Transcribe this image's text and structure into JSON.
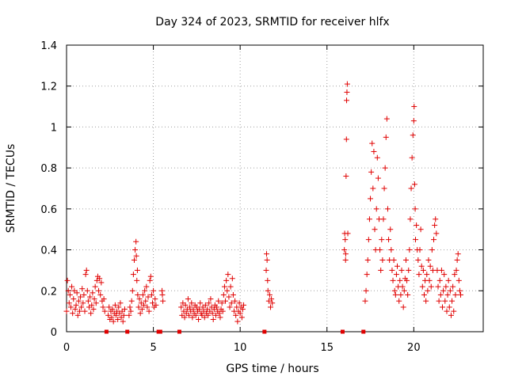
{
  "chart_data": {
    "type": "scatter",
    "title": "Day 324 of 2023, SRMTID for receiver hlfx",
    "xlabel": "GPS time / hours",
    "ylabel": "SRMTID / TECUs",
    "xlim": [
      0,
      24
    ],
    "ylim": [
      0,
      1.4
    ],
    "xticks": [
      0,
      5,
      10,
      15,
      20
    ],
    "xtick_labels": [
      "0",
      "5",
      "10",
      "15",
      "20"
    ],
    "yticks": [
      0,
      0.2,
      0.4,
      0.6,
      0.8,
      1.0,
      1.2,
      1.4
    ],
    "ytick_labels": [
      "0",
      "0.2",
      "0.4",
      "0.6",
      "0.8",
      "1",
      "1.2",
      "1.4"
    ],
    "grid": true,
    "marker": "plus",
    "series_color": "#e00000",
    "series": [
      {
        "name": "SRMTID",
        "points": [
          [
            0.0,
            0.1
          ],
          [
            0.05,
            0.25
          ],
          [
            0.1,
            0.2
          ],
          [
            0.15,
            0.14
          ],
          [
            0.2,
            0.18
          ],
          [
            0.25,
            0.12
          ],
          [
            0.3,
            0.22
          ],
          [
            0.35,
            0.09
          ],
          [
            0.4,
            0.16
          ],
          [
            0.45,
            0.2
          ],
          [
            0.5,
            0.11
          ],
          [
            0.55,
            0.13
          ],
          [
            0.6,
            0.19
          ],
          [
            0.65,
            0.08
          ],
          [
            0.7,
            0.15
          ],
          [
            0.75,
            0.1
          ],
          [
            0.8,
            0.17
          ],
          [
            0.85,
            0.12
          ],
          [
            0.9,
            0.21
          ],
          [
            0.95,
            0.14
          ],
          [
            1.0,
            0.18
          ],
          [
            1.05,
            0.1
          ],
          [
            1.1,
            0.28
          ],
          [
            1.15,
            0.3
          ],
          [
            1.2,
            0.2
          ],
          [
            1.25,
            0.15
          ],
          [
            1.3,
            0.12
          ],
          [
            1.35,
            0.17
          ],
          [
            1.4,
            0.09
          ],
          [
            1.45,
            0.13
          ],
          [
            1.5,
            0.19
          ],
          [
            1.55,
            0.11
          ],
          [
            1.6,
            0.16
          ],
          [
            1.65,
            0.22
          ],
          [
            1.7,
            0.14
          ],
          [
            1.75,
            0.25
          ],
          [
            1.8,
            0.27
          ],
          [
            1.85,
            0.2
          ],
          [
            1.9,
            0.26
          ],
          [
            1.95,
            0.18
          ],
          [
            2.0,
            0.24
          ],
          [
            2.05,
            0.15
          ],
          [
            2.1,
            0.12
          ],
          [
            2.15,
            0.16
          ],
          [
            2.2,
            0.1
          ],
          [
            2.4,
            0.08
          ],
          [
            2.45,
            0.12
          ],
          [
            2.5,
            0.06
          ],
          [
            2.55,
            0.1
          ],
          [
            2.6,
            0.07
          ],
          [
            2.65,
            0.11
          ],
          [
            2.7,
            0.05
          ],
          [
            2.75,
            0.09
          ],
          [
            2.8,
            0.13
          ],
          [
            2.85,
            0.08
          ],
          [
            2.9,
            0.1
          ],
          [
            2.95,
            0.06
          ],
          [
            3.0,
            0.12
          ],
          [
            3.05,
            0.09
          ],
          [
            3.1,
            0.14
          ],
          [
            3.15,
            0.07
          ],
          [
            3.2,
            0.1
          ],
          [
            3.25,
            0.05
          ],
          [
            3.3,
            0.08
          ],
          [
            3.35,
            0.11
          ],
          [
            3.6,
            0.08
          ],
          [
            3.65,
            0.12
          ],
          [
            3.7,
            0.1
          ],
          [
            3.75,
            0.15
          ],
          [
            3.8,
            0.2
          ],
          [
            3.85,
            0.28
          ],
          [
            3.9,
            0.35
          ],
          [
            3.95,
            0.4
          ],
          [
            4.0,
            0.44
          ],
          [
            4.02,
            0.37
          ],
          [
            4.05,
            0.25
          ],
          [
            4.08,
            0.3
          ],
          [
            4.1,
            0.18
          ],
          [
            4.15,
            0.12
          ],
          [
            4.2,
            0.16
          ],
          [
            4.25,
            0.09
          ],
          [
            4.3,
            0.14
          ],
          [
            4.35,
            0.11
          ],
          [
            4.4,
            0.18
          ],
          [
            4.45,
            0.13
          ],
          [
            4.5,
            0.2
          ],
          [
            4.55,
            0.15
          ],
          [
            4.6,
            0.22
          ],
          [
            4.65,
            0.12
          ],
          [
            4.7,
            0.17
          ],
          [
            4.75,
            0.1
          ],
          [
            4.8,
            0.25
          ],
          [
            4.85,
            0.27
          ],
          [
            4.9,
            0.18
          ],
          [
            4.95,
            0.14
          ],
          [
            5.0,
            0.2
          ],
          [
            5.05,
            0.12
          ],
          [
            5.1,
            0.16
          ],
          [
            5.15,
            0.13
          ],
          [
            5.5,
            0.2
          ],
          [
            5.52,
            0.18
          ],
          [
            5.55,
            0.15
          ],
          [
            6.6,
            0.12
          ],
          [
            6.65,
            0.08
          ],
          [
            6.7,
            0.14
          ],
          [
            6.75,
            0.1
          ],
          [
            6.8,
            0.07
          ],
          [
            6.85,
            0.13
          ],
          [
            6.9,
            0.09
          ],
          [
            6.95,
            0.11
          ],
          [
            7.0,
            0.16
          ],
          [
            7.05,
            0.08
          ],
          [
            7.1,
            0.12
          ],
          [
            7.15,
            0.1
          ],
          [
            7.2,
            0.14
          ],
          [
            7.25,
            0.07
          ],
          [
            7.3,
            0.11
          ],
          [
            7.35,
            0.09
          ],
          [
            7.4,
            0.13
          ],
          [
            7.45,
            0.08
          ],
          [
            7.5,
            0.12
          ],
          [
            7.55,
            0.1
          ],
          [
            7.6,
            0.06
          ],
          [
            7.65,
            0.11
          ],
          [
            7.7,
            0.14
          ],
          [
            7.75,
            0.09
          ],
          [
            7.8,
            0.08
          ],
          [
            7.85,
            0.12
          ],
          [
            7.9,
            0.1
          ],
          [
            7.95,
            0.07
          ],
          [
            8.0,
            0.13
          ],
          [
            8.05,
            0.09
          ],
          [
            8.1,
            0.11
          ],
          [
            8.15,
            0.08
          ],
          [
            8.2,
            0.14
          ],
          [
            8.25,
            0.1
          ],
          [
            8.3,
            0.16
          ],
          [
            8.35,
            0.12
          ],
          [
            8.4,
            0.09
          ],
          [
            8.45,
            0.06
          ],
          [
            8.5,
            0.11
          ],
          [
            8.55,
            0.13
          ],
          [
            8.6,
            0.08
          ],
          [
            8.65,
            0.12
          ],
          [
            8.7,
            0.1
          ],
          [
            8.75,
            0.15
          ],
          [
            8.8,
            0.09
          ],
          [
            8.85,
            0.07
          ],
          [
            8.9,
            0.11
          ],
          [
            8.95,
            0.14
          ],
          [
            9.0,
            0.1
          ],
          [
            9.05,
            0.18
          ],
          [
            9.1,
            0.22
          ],
          [
            9.15,
            0.15
          ],
          [
            9.2,
            0.25
          ],
          [
            9.25,
            0.2
          ],
          [
            9.3,
            0.28
          ],
          [
            9.35,
            0.17
          ],
          [
            9.4,
            0.12
          ],
          [
            9.45,
            0.22
          ],
          [
            9.5,
            0.14
          ],
          [
            9.55,
            0.26
          ],
          [
            9.6,
            0.18
          ],
          [
            9.65,
            0.1
          ],
          [
            9.7,
            0.15
          ],
          [
            9.75,
            0.08
          ],
          [
            9.8,
            0.12
          ],
          [
            9.85,
            0.05
          ],
          [
            9.9,
            0.1
          ],
          [
            9.95,
            0.14
          ],
          [
            10.0,
            0.09
          ],
          [
            10.05,
            0.12
          ],
          [
            10.1,
            0.07
          ],
          [
            10.15,
            0.11
          ],
          [
            10.2,
            0.13
          ],
          [
            11.5,
            0.3
          ],
          [
            11.52,
            0.38
          ],
          [
            11.55,
            0.35
          ],
          [
            11.58,
            0.25
          ],
          [
            11.6,
            0.2
          ],
          [
            11.65,
            0.15
          ],
          [
            11.7,
            0.18
          ],
          [
            11.75,
            0.12
          ],
          [
            11.8,
            0.16
          ],
          [
            11.85,
            0.14
          ],
          [
            16.0,
            0.4
          ],
          [
            16.02,
            0.48
          ],
          [
            16.05,
            0.45
          ],
          [
            16.07,
            0.35
          ],
          [
            16.08,
            0.38
          ],
          [
            16.1,
            0.76
          ],
          [
            16.12,
            0.94
          ],
          [
            16.13,
            1.13
          ],
          [
            16.15,
            1.17
          ],
          [
            16.17,
            1.21
          ],
          [
            16.2,
            0.48
          ],
          [
            17.2,
            0.15
          ],
          [
            17.25,
            0.2
          ],
          [
            17.3,
            0.28
          ],
          [
            17.35,
            0.35
          ],
          [
            17.4,
            0.45
          ],
          [
            17.45,
            0.55
          ],
          [
            17.5,
            0.65
          ],
          [
            17.55,
            0.78
          ],
          [
            17.6,
            0.92
          ],
          [
            17.65,
            0.7
          ],
          [
            17.7,
            0.88
          ],
          [
            17.75,
            0.5
          ],
          [
            17.8,
            0.4
          ],
          [
            17.85,
            0.6
          ],
          [
            17.9,
            0.85
          ],
          [
            17.95,
            0.75
          ],
          [
            18.0,
            0.55
          ],
          [
            18.05,
            0.4
          ],
          [
            18.1,
            0.3
          ],
          [
            18.15,
            0.45
          ],
          [
            18.2,
            0.35
          ],
          [
            18.25,
            0.55
          ],
          [
            18.3,
            0.7
          ],
          [
            18.35,
            0.8
          ],
          [
            18.4,
            0.95
          ],
          [
            18.45,
            1.04
          ],
          [
            18.5,
            0.6
          ],
          [
            18.55,
            0.45
          ],
          [
            18.6,
            0.35
          ],
          [
            18.65,
            0.5
          ],
          [
            18.7,
            0.4
          ],
          [
            18.75,
            0.3
          ],
          [
            18.8,
            0.25
          ],
          [
            18.85,
            0.35
          ],
          [
            18.9,
            0.2
          ],
          [
            18.95,
            0.18
          ],
          [
            19.0,
            0.28
          ],
          [
            19.05,
            0.32
          ],
          [
            19.1,
            0.22
          ],
          [
            19.15,
            0.15
          ],
          [
            19.2,
            0.25
          ],
          [
            19.25,
            0.18
          ],
          [
            19.3,
            0.3
          ],
          [
            19.35,
            0.22
          ],
          [
            19.4,
            0.12
          ],
          [
            19.45,
            0.2
          ],
          [
            19.5,
            0.26
          ],
          [
            19.55,
            0.35
          ],
          [
            19.6,
            0.25
          ],
          [
            19.65,
            0.18
          ],
          [
            19.7,
            0.3
          ],
          [
            19.75,
            0.4
          ],
          [
            19.8,
            0.55
          ],
          [
            19.85,
            0.7
          ],
          [
            19.9,
            0.85
          ],
          [
            19.95,
            0.96
          ],
          [
            20.0,
            1.03
          ],
          [
            20.02,
            1.1
          ],
          [
            20.05,
            0.72
          ],
          [
            20.08,
            0.6
          ],
          [
            20.1,
            0.45
          ],
          [
            20.15,
            0.52
          ],
          [
            20.2,
            0.4
          ],
          [
            20.25,
            0.35
          ],
          [
            20.3,
            0.28
          ],
          [
            20.35,
            0.4
          ],
          [
            20.4,
            0.5
          ],
          [
            20.45,
            0.32
          ],
          [
            20.5,
            0.22
          ],
          [
            20.55,
            0.3
          ],
          [
            20.6,
            0.18
          ],
          [
            20.65,
            0.25
          ],
          [
            20.7,
            0.15
          ],
          [
            20.75,
            0.28
          ],
          [
            20.8,
            0.2
          ],
          [
            20.85,
            0.35
          ],
          [
            20.9,
            0.25
          ],
          [
            20.95,
            0.32
          ],
          [
            21.0,
            0.22
          ],
          [
            21.05,
            0.4
          ],
          [
            21.1,
            0.3
          ],
          [
            21.15,
            0.45
          ],
          [
            21.2,
            0.52
          ],
          [
            21.25,
            0.55
          ],
          [
            21.3,
            0.48
          ],
          [
            21.35,
            0.3
          ],
          [
            21.4,
            0.22
          ],
          [
            21.45,
            0.15
          ],
          [
            21.5,
            0.25
          ],
          [
            21.55,
            0.18
          ],
          [
            21.6,
            0.3
          ],
          [
            21.65,
            0.12
          ],
          [
            21.7,
            0.2
          ],
          [
            21.75,
            0.28
          ],
          [
            21.8,
            0.15
          ],
          [
            21.85,
            0.22
          ],
          [
            21.9,
            0.1
          ],
          [
            21.95,
            0.18
          ],
          [
            22.0,
            0.25
          ],
          [
            22.05,
            0.12
          ],
          [
            22.1,
            0.2
          ],
          [
            22.15,
            0.08
          ],
          [
            22.2,
            0.15
          ],
          [
            22.25,
            0.22
          ],
          [
            22.3,
            0.1
          ],
          [
            22.35,
            0.28
          ],
          [
            22.4,
            0.18
          ],
          [
            22.45,
            0.3
          ],
          [
            22.5,
            0.35
          ],
          [
            22.55,
            0.38
          ],
          [
            22.6,
            0.25
          ],
          [
            22.65,
            0.2
          ],
          [
            22.7,
            0.18
          ]
        ]
      }
    ],
    "gap_markers_x": [
      2.3,
      3.5,
      5.3,
      5.4,
      6.5,
      11.4,
      15.9,
      17.1
    ]
  }
}
